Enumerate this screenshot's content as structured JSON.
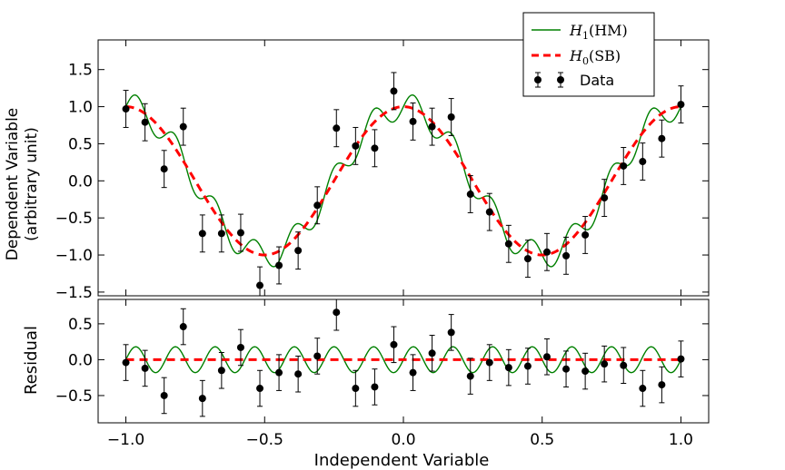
{
  "chart_data": [
    {
      "panel": "main",
      "type": "line",
      "xlim": [
        -1.1,
        1.1
      ],
      "ylim": [
        -1.55,
        1.9
      ],
      "yticks": [
        -1.5,
        -1.0,
        -0.5,
        0.0,
        0.5,
        1.0,
        1.5
      ],
      "ytick_labels": [
        "−1.5",
        "−1.0",
        "−0.5",
        "0.0",
        "0.5",
        "1.0",
        "1.5"
      ],
      "ylabel_line1": "Dependent Variable",
      "ylabel_line2": "(arbitrary unit)",
      "xlabel": "",
      "series": [
        {
          "name": "H1(HM)",
          "kind": "model",
          "color": "#008000",
          "style": "solid",
          "formula": "cos(2πx) + 0.18·sin(14πx)"
        },
        {
          "name": "H0(SB)",
          "kind": "model",
          "color": "#ff0000",
          "style": "dashed",
          "formula": "cos(2πx)"
        },
        {
          "name": "Data",
          "kind": "points",
          "color": "#000000",
          "x": [
            -1.0,
            -0.931,
            -0.8621,
            -0.7931,
            -0.7241,
            -0.6552,
            -0.5862,
            -0.5172,
            -0.4483,
            -0.3793,
            -0.3103,
            -0.2414,
            -0.1724,
            -0.1034,
            -0.0345,
            0.0345,
            0.1034,
            0.1724,
            0.2414,
            0.3103,
            0.3793,
            0.4483,
            0.5172,
            0.5862,
            0.6552,
            0.7241,
            0.7931,
            0.8621,
            0.931,
            1.0
          ],
          "y": [
            0.97,
            0.79,
            0.16,
            0.73,
            -0.71,
            -0.71,
            -0.7,
            -1.41,
            -1.14,
            -0.94,
            -0.33,
            0.71,
            0.47,
            0.44,
            1.21,
            0.8,
            0.73,
            0.86,
            -0.18,
            -0.42,
            -0.85,
            -1.05,
            -0.96,
            -1.01,
            -0.73,
            -0.23,
            0.2,
            0.26,
            0.57,
            1.03
          ],
          "yerr": [
            0.25,
            0.25,
            0.25,
            0.25,
            0.25,
            0.25,
            0.25,
            0.25,
            0.25,
            0.25,
            0.25,
            0.25,
            0.25,
            0.25,
            0.25,
            0.25,
            0.25,
            0.25,
            0.25,
            0.25,
            0.25,
            0.25,
            0.25,
            0.25,
            0.25,
            0.25,
            0.25,
            0.25,
            0.25,
            0.25
          ]
        }
      ]
    },
    {
      "panel": "residual",
      "type": "line",
      "xlim": [
        -1.1,
        1.1
      ],
      "ylim": [
        -0.88,
        0.84
      ],
      "xticks": [
        -1.0,
        -0.5,
        0.0,
        0.5,
        1.0
      ],
      "xtick_labels": [
        "−1.0",
        "−0.5",
        "0.0",
        "0.5",
        "1.0"
      ],
      "yticks": [
        -0.5,
        0.0,
        0.5
      ],
      "ytick_labels": [
        "−0.5",
        "0.0",
        "0.5"
      ],
      "ylabel": "Residual",
      "xlabel": "Independent Variable",
      "series": [
        {
          "name": "H1(HM) residual",
          "kind": "model",
          "color": "#008000",
          "style": "solid",
          "formula": "0.18·sin(14πx)"
        },
        {
          "name": "H0(SB) residual",
          "kind": "model",
          "color": "#ff0000",
          "style": "dashed",
          "formula": "0"
        },
        {
          "name": "Data residual",
          "kind": "points",
          "color": "#000000",
          "x": [
            -1.0,
            -0.931,
            -0.8621,
            -0.7931,
            -0.7241,
            -0.6552,
            -0.5862,
            -0.5172,
            -0.4483,
            -0.3793,
            -0.3103,
            -0.2414,
            -0.1724,
            -0.1034,
            -0.0345,
            0.0345,
            0.1034,
            0.1724,
            0.2414,
            0.3103,
            0.3793,
            0.4483,
            0.5172,
            0.5862,
            0.6552,
            0.7241,
            0.7931,
            0.8621,
            0.931,
            1.0
          ],
          "y": [
            -0.04,
            -0.12,
            -0.5,
            0.46,
            -0.54,
            -0.15,
            0.17,
            -0.4,
            -0.18,
            -0.2,
            0.05,
            0.66,
            -0.4,
            -0.38,
            0.21,
            -0.18,
            0.09,
            0.38,
            -0.23,
            -0.04,
            -0.11,
            -0.09,
            0.04,
            -0.13,
            -0.16,
            -0.06,
            -0.08,
            -0.4,
            -0.35,
            0.01
          ],
          "yerr": [
            0.25,
            0.25,
            0.25,
            0.25,
            0.25,
            0.25,
            0.25,
            0.25,
            0.25,
            0.25,
            0.25,
            0.25,
            0.25,
            0.25,
            0.25,
            0.25,
            0.25,
            0.25,
            0.25,
            0.25,
            0.25,
            0.25,
            0.25,
            0.25,
            0.25,
            0.25,
            0.25,
            0.25,
            0.25,
            0.25
          ]
        }
      ]
    }
  ],
  "legend": {
    "placement": "top-right, above plot",
    "h1_symbol": "H",
    "h1_sub": "1",
    "h1_text": "(HM)",
    "h0_symbol": "H",
    "h0_sub": "0",
    "h0_text": "(SB)",
    "data_label": "Data"
  }
}
